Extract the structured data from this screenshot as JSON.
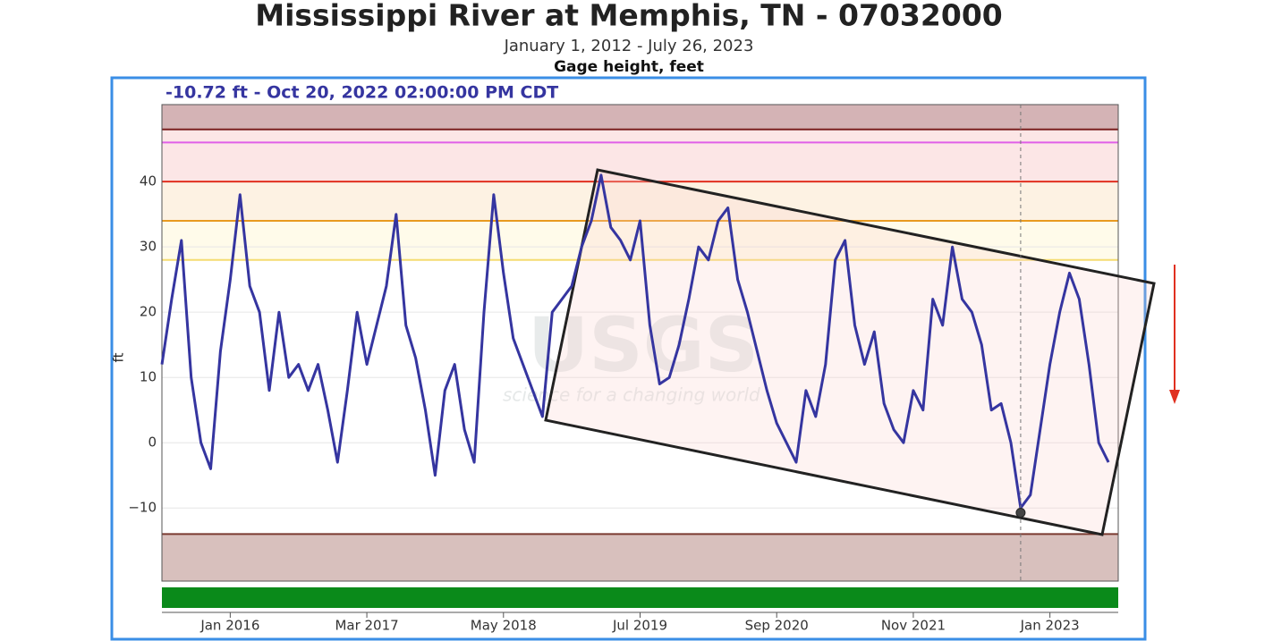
{
  "chart_data": {
    "type": "line",
    "title": "Mississippi River at Memphis, TN - 07032000",
    "subtitle": "January 1, 2012 - July 26, 2023",
    "axis_title": "Gage height, feet",
    "y_label": "ft",
    "watermark": {
      "logo": "USGS",
      "tagline": "science for a changing world"
    },
    "highlight": {
      "x": "2022-10",
      "value": -10.72,
      "label": "-10.72 ft - Oct 20, 2022 02:00:00 PM CDT"
    },
    "color": "#3535a0",
    "x": [
      "2015-06",
      "2015-07",
      "2015-08",
      "2015-09",
      "2015-10",
      "2015-11",
      "2015-12",
      "2016-01",
      "2016-02",
      "2016-03",
      "2016-04",
      "2016-05",
      "2016-06",
      "2016-07",
      "2016-08",
      "2016-09",
      "2016-10",
      "2016-11",
      "2016-12",
      "2017-01",
      "2017-02",
      "2017-03",
      "2017-04",
      "2017-05",
      "2017-06",
      "2017-07",
      "2017-08",
      "2017-09",
      "2017-10",
      "2017-11",
      "2017-12",
      "2018-01",
      "2018-02",
      "2018-03",
      "2018-04",
      "2018-05",
      "2018-06",
      "2018-07",
      "2018-08",
      "2018-09",
      "2018-10",
      "2018-11",
      "2018-12",
      "2019-01",
      "2019-02",
      "2019-03",
      "2019-04",
      "2019-05",
      "2019-06",
      "2019-07",
      "2019-08",
      "2019-09",
      "2019-10",
      "2019-11",
      "2019-12",
      "2020-01",
      "2020-02",
      "2020-03",
      "2020-04",
      "2020-05",
      "2020-06",
      "2020-07",
      "2020-08",
      "2020-09",
      "2020-10",
      "2020-11",
      "2020-12",
      "2021-01",
      "2021-02",
      "2021-03",
      "2021-04",
      "2021-05",
      "2021-06",
      "2021-07",
      "2021-08",
      "2021-09",
      "2021-10",
      "2021-11",
      "2021-12",
      "2022-01",
      "2022-02",
      "2022-03",
      "2022-04",
      "2022-05",
      "2022-06",
      "2022-07",
      "2022-08",
      "2022-09",
      "2022-10",
      "2022-11",
      "2022-12",
      "2023-01",
      "2023-02",
      "2023-03",
      "2023-04",
      "2023-05",
      "2023-06",
      "2023-07"
    ],
    "values": [
      12,
      22,
      31,
      10,
      0,
      -4,
      14,
      25,
      38,
      24,
      20,
      8,
      20,
      10,
      12,
      8,
      12,
      5,
      -3,
      8,
      20,
      12,
      18,
      24,
      35,
      18,
      13,
      5,
      -5,
      8,
      12,
      2,
      -3,
      20,
      38,
      26,
      16,
      12,
      8,
      4,
      20,
      22,
      24,
      30,
      34,
      41,
      33,
      31,
      28,
      34,
      18,
      9,
      10,
      15,
      22,
      30,
      28,
      34,
      36,
      25,
      20,
      14,
      8,
      3,
      0,
      -3,
      8,
      4,
      12,
      28,
      31,
      18,
      12,
      17,
      6,
      2,
      0,
      8,
      5,
      22,
      18,
      30,
      22,
      20,
      15,
      5,
      6,
      0,
      -10,
      -8,
      2,
      12,
      20,
      26,
      22,
      12,
      0,
      -3
    ],
    "xlim": [
      "2015-06",
      "2023-08"
    ],
    "xticks": [
      {
        "value": "2016-01",
        "label": "Jan 2016"
      },
      {
        "value": "2017-03",
        "label": "Mar 2017"
      },
      {
        "value": "2018-05",
        "label": "May 2018"
      },
      {
        "value": "2019-07",
        "label": "Jul 2019"
      },
      {
        "value": "2020-09",
        "label": "Sep 2020"
      },
      {
        "value": "2021-11",
        "label": "Nov 2021"
      },
      {
        "value": "2023-01",
        "label": "Jan 2023"
      }
    ],
    "ylim": [
      -21.2,
      51.8
    ],
    "yticks": [
      {
        "value": -10,
        "label": "−10"
      },
      0,
      10,
      20,
      30,
      40
    ],
    "grid": true,
    "bands": [
      {
        "above": 48,
        "color": "#d4b3b5"
      },
      {
        "range": [
          40,
          48
        ],
        "color": "#fce6e6"
      },
      {
        "range": [
          34,
          40
        ],
        "color": "#fdf2e3"
      },
      {
        "range": [
          28,
          34
        ],
        "color": "#fffbea"
      },
      {
        "below": -14,
        "color": "#d8c0bd"
      }
    ],
    "reference_lines": [
      {
        "value": 48,
        "color": "#7a1f1f"
      },
      {
        "value": 46,
        "color": "#e060e8"
      },
      {
        "value": 40,
        "color": "#e03020"
      },
      {
        "value": 34,
        "color": "#e89a20"
      },
      {
        "value": 28,
        "color": "#f5dc70"
      },
      {
        "value": -14,
        "color": "#7a3a30"
      }
    ]
  }
}
